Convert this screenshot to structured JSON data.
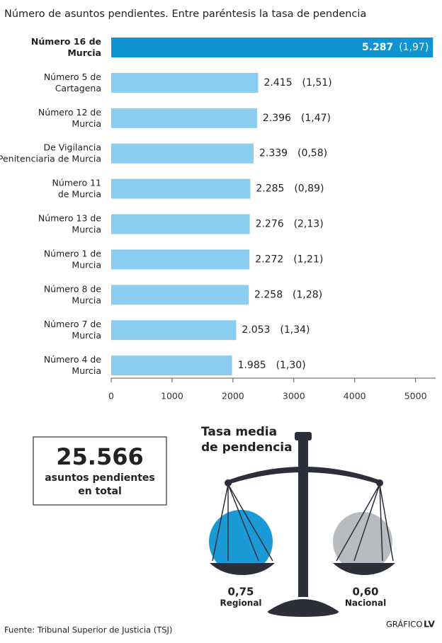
{
  "chart_data": {
    "type": "bar",
    "orientation": "horizontal",
    "title": "Número de asuntos pendientes. Entre paréntesis la tasa de pendencia",
    "categories": [
      "Número 16 de\nMurcia",
      "Número 5 de\nCartagena",
      "Número 12 de\nMurcia",
      "De Vigilancia\nPenitenciaria de Murcia",
      "Número 11\nde Murcia",
      "Número 13 de\nMurcia",
      "Número 1 de\nMurcia",
      "Número 8 de\nMurcia",
      "Número 7 de\nMurcia",
      "Número 4 de\nMurcia"
    ],
    "values": [
      5287,
      2415,
      2396,
      2339,
      2285,
      2276,
      2272,
      2258,
      2053,
      1985
    ],
    "value_labels": [
      "5.287",
      "2.415",
      "2.396",
      "2.339",
      "2.285",
      "2.276",
      "2.272",
      "2.258",
      "2.053",
      "1.985"
    ],
    "rate_labels": [
      "(1,97)",
      "(1,51)",
      "(1,47)",
      "(0,58)",
      "(0,89)",
      "(2,13)",
      "(1,21)",
      "(1,28)",
      "(1,34)",
      "(1,30)"
    ],
    "color": "#8bcdee",
    "highlight_color": "#0f94d2",
    "highlight_index": 0,
    "xlim": [
      0,
      5330
    ],
    "xticks": [
      0,
      1000,
      2000,
      3000,
      4000,
      5000
    ]
  },
  "summary": {
    "total": "25.566",
    "text": "asuntos pendientes\nen total"
  },
  "scale": {
    "title": "Tasa media\nde pendencia",
    "left_value": "0,75",
    "left_label": "Regional",
    "right_value": "0,60",
    "right_label": "Nacional"
  },
  "source": "Fuente: Tribunal Superior de Justicia (TSJ)",
  "credit": {
    "prefix": "GRÁFICO",
    "brand": "LV"
  }
}
